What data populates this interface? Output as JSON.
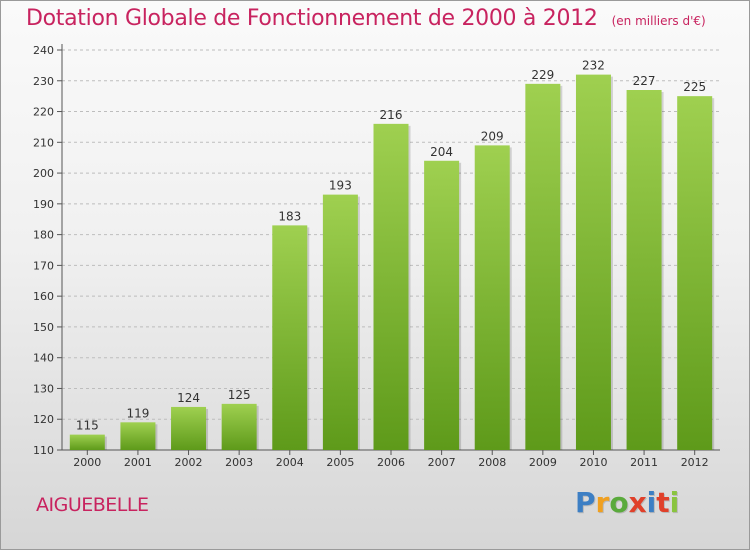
{
  "header": {
    "title": "Dotation Globale de Fonctionnement de 2000 à 2012",
    "unit": "(en milliers d'€)"
  },
  "footer": {
    "commune": "AIGUEBELLE",
    "logo_letters": [
      "P",
      "r",
      "o",
      "x",
      "i",
      "t",
      "i"
    ]
  },
  "colors": {
    "title": "#c8235f",
    "bar_top": "#9fd050",
    "bar_bottom": "#5e9a1a"
  },
  "chart_data": {
    "type": "bar",
    "title": "Dotation Globale de Fonctionnement de 2000 à 2012",
    "subtitle": "(en milliers d'€)",
    "categories": [
      "2000",
      "2001",
      "2002",
      "2003",
      "2004",
      "2005",
      "2006",
      "2007",
      "2008",
      "2009",
      "2010",
      "2011",
      "2012"
    ],
    "values": [
      115,
      119,
      124,
      125,
      183,
      193,
      216,
      204,
      209,
      229,
      232,
      227,
      225
    ],
    "ylim": [
      110,
      240
    ],
    "yticks": [
      110,
      120,
      130,
      140,
      150,
      160,
      170,
      180,
      190,
      200,
      210,
      220,
      230,
      240
    ],
    "grid": true,
    "data_labels": true,
    "xlabel": "",
    "ylabel": ""
  }
}
